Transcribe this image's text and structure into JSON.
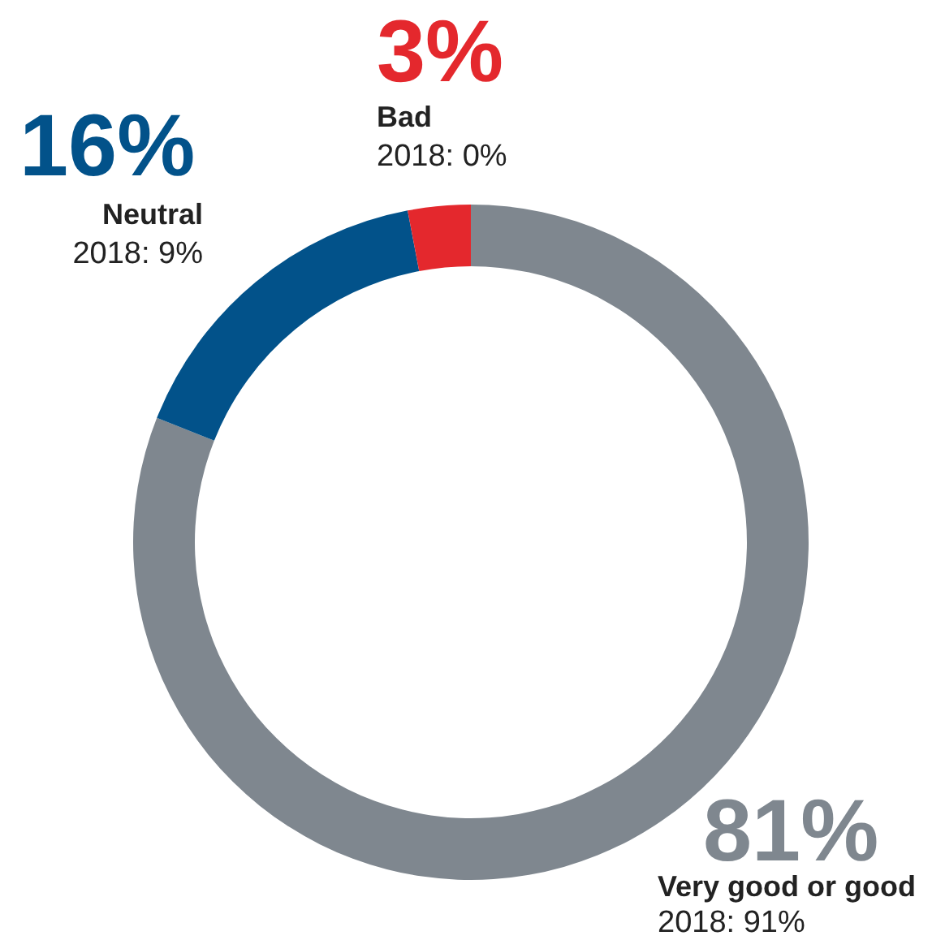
{
  "chart_data": {
    "type": "donut",
    "categories": [
      "Very good or good",
      "Neutral",
      "Bad"
    ],
    "values": [
      81,
      16,
      3
    ],
    "colors": [
      "#7f878f",
      "#02528a",
      "#e4282d"
    ],
    "value_labels": [
      "81%",
      "16%",
      "3%"
    ],
    "annotations": [
      "2018: 91%",
      "2018: 9%",
      "2018: 0%"
    ]
  }
}
